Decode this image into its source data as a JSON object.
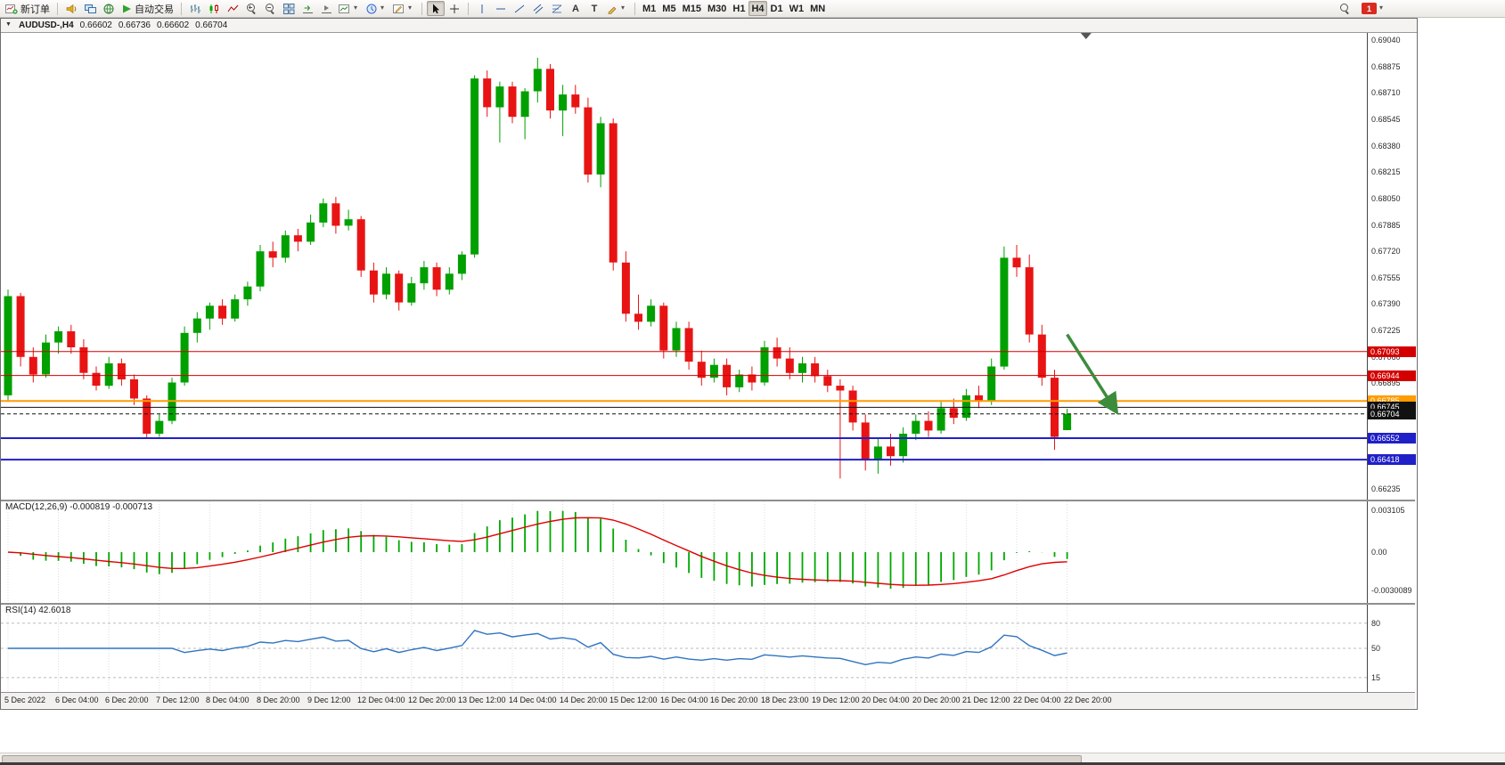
{
  "toolbar": {
    "new_order_label": "新订单",
    "auto_trading_label": "自动交易",
    "text_tool_glyph": "A",
    "label_tool_glyph": "T",
    "timeframes": [
      "M1",
      "M5",
      "M15",
      "M30",
      "H1",
      "H4",
      "D1",
      "W1",
      "MN"
    ],
    "active_timeframe": "H4",
    "notification_count": "1"
  },
  "chart": {
    "title_symbol": "AUDUSD-,H4",
    "title_open": "0.66602",
    "title_high": "0.66736",
    "title_low": "0.66602",
    "title_close": "0.66704"
  },
  "indicators": {
    "macd_label": "MACD(12,26,9) -0.000819 -0.000713",
    "macd_axis_top": "0.003105",
    "macd_axis_zero": "0.00",
    "macd_axis_bottom": "-0.0030089",
    "rsi_label": "RSI(14) 42.6018"
  },
  "chart_data": [
    {
      "type": "candlestick",
      "title": "AUDUSD-,H4",
      "timeframe": "H4",
      "bull_color": "#00a000",
      "bear_color": "#e81414",
      "y_axis": {
        "top": 0.6904,
        "step": 0.00165,
        "count": 18,
        "decimals": 5
      },
      "label_interval": 4,
      "x_labels": [
        "5 Dec 2022",
        "6 Dec 04:00",
        "6 Dec 20:00",
        "7 Dec 12:00",
        "8 Dec 04:00",
        "8 Dec 20:00",
        "9 Dec 12:00",
        "12 Dec 04:00",
        "12 Dec 20:00",
        "13 Dec 12:00",
        "14 Dec 04:00",
        "14 Dec 20:00",
        "15 Dec 12:00",
        "16 Dec 04:00",
        "16 Dec 20:00",
        "18 Dec 23:00",
        "19 Dec 12:00",
        "20 Dec 04:00",
        "20 Dec 20:00",
        "21 Dec 12:00",
        "22 Dec 04:00",
        "22 Dec 20:00"
      ],
      "levels": [
        {
          "price": 0.67093,
          "label": "0.67093",
          "color": "#d40000",
          "width": 1,
          "style": "solid"
        },
        {
          "price": 0.66944,
          "label": "0.66944",
          "color": "#d40000",
          "width": 1,
          "style": "solid"
        },
        {
          "price": 0.66785,
          "label": "0.66785",
          "color": "#ff9c00",
          "width": 2,
          "style": "solid"
        },
        {
          "price": 0.66745,
          "label": "0.66745",
          "color": "#111111",
          "width": 1,
          "style": "solid"
        },
        {
          "price": 0.66704,
          "label": "0.66704",
          "color": "#111111",
          "width": 1,
          "style": "dash",
          "role": "current-price"
        },
        {
          "price": 0.66552,
          "label": "0.66552",
          "color": "#2020c8",
          "width": 2,
          "style": "solid"
        },
        {
          "price": 0.66418,
          "label": "0.66418",
          "color": "#2020c8",
          "width": 2,
          "style": "solid"
        }
      ],
      "annotation_arrow": {
        "x1_bar": 84.0,
        "price1": 0.672,
        "x2_bar": 87.8,
        "price2": 0.6673,
        "color": "#3c8c3c"
      },
      "shift_marker_bar": 85.5,
      "ohlc": [
        [
          0.6682,
          0.6748,
          0.6678,
          0.6744
        ],
        [
          0.6744,
          0.6746,
          0.67,
          0.6706
        ],
        [
          0.6706,
          0.6712,
          0.669,
          0.6695
        ],
        [
          0.6695,
          0.672,
          0.6693,
          0.6715
        ],
        [
          0.6715,
          0.6725,
          0.6708,
          0.6722
        ],
        [
          0.6722,
          0.6726,
          0.6708,
          0.6712
        ],
        [
          0.6712,
          0.6717,
          0.6692,
          0.6696
        ],
        [
          0.6696,
          0.67,
          0.6685,
          0.6688
        ],
        [
          0.6688,
          0.6706,
          0.6686,
          0.6702
        ],
        [
          0.6702,
          0.6705,
          0.6688,
          0.6692
        ],
        [
          0.6692,
          0.6695,
          0.6676,
          0.668
        ],
        [
          0.668,
          0.6682,
          0.6655,
          0.6658
        ],
        [
          0.6658,
          0.667,
          0.6656,
          0.6666
        ],
        [
          0.6666,
          0.6693,
          0.6664,
          0.669
        ],
        [
          0.669,
          0.6725,
          0.6688,
          0.6721
        ],
        [
          0.6721,
          0.6734,
          0.6715,
          0.673
        ],
        [
          0.673,
          0.674,
          0.6723,
          0.6738
        ],
        [
          0.6738,
          0.6742,
          0.6726,
          0.673
        ],
        [
          0.673,
          0.6745,
          0.6728,
          0.6742
        ],
        [
          0.6742,
          0.6753,
          0.6738,
          0.675
        ],
        [
          0.675,
          0.6776,
          0.6747,
          0.6772
        ],
        [
          0.6772,
          0.6778,
          0.6762,
          0.6768
        ],
        [
          0.6768,
          0.6785,
          0.6765,
          0.6782
        ],
        [
          0.6782,
          0.6786,
          0.6772,
          0.6778
        ],
        [
          0.6778,
          0.6795,
          0.6776,
          0.679
        ],
        [
          0.679,
          0.6805,
          0.6787,
          0.6802
        ],
        [
          0.6802,
          0.6806,
          0.6783,
          0.6788
        ],
        [
          0.6788,
          0.6798,
          0.6785,
          0.6792
        ],
        [
          0.6792,
          0.6794,
          0.6756,
          0.676
        ],
        [
          0.676,
          0.6765,
          0.674,
          0.6745
        ],
        [
          0.6745,
          0.6762,
          0.6742,
          0.6758
        ],
        [
          0.6758,
          0.676,
          0.6735,
          0.674
        ],
        [
          0.674,
          0.6756,
          0.6738,
          0.6752
        ],
        [
          0.6752,
          0.6766,
          0.6748,
          0.6762
        ],
        [
          0.6762,
          0.6765,
          0.6744,
          0.6748
        ],
        [
          0.6748,
          0.6762,
          0.6745,
          0.6758
        ],
        [
          0.6758,
          0.6772,
          0.6754,
          0.677
        ],
        [
          0.677,
          0.6882,
          0.6768,
          0.688
        ],
        [
          0.688,
          0.6885,
          0.6856,
          0.6862
        ],
        [
          0.6862,
          0.6878,
          0.684,
          0.6875
        ],
        [
          0.6875,
          0.6878,
          0.6852,
          0.6856
        ],
        [
          0.6856,
          0.6874,
          0.6842,
          0.6872
        ],
        [
          0.6872,
          0.6893,
          0.6865,
          0.6886
        ],
        [
          0.6886,
          0.6889,
          0.6855,
          0.686
        ],
        [
          0.686,
          0.6876,
          0.6844,
          0.687
        ],
        [
          0.687,
          0.6876,
          0.6858,
          0.6862
        ],
        [
          0.6862,
          0.6868,
          0.6815,
          0.682
        ],
        [
          0.682,
          0.6856,
          0.6812,
          0.6852
        ],
        [
          0.6852,
          0.6855,
          0.676,
          0.6765
        ],
        [
          0.6765,
          0.6772,
          0.6728,
          0.6733
        ],
        [
          0.6733,
          0.6745,
          0.6723,
          0.6728
        ],
        [
          0.6728,
          0.6742,
          0.6725,
          0.6738
        ],
        [
          0.6738,
          0.674,
          0.6705,
          0.671
        ],
        [
          0.671,
          0.6728,
          0.6706,
          0.6724
        ],
        [
          0.6724,
          0.6728,
          0.6698,
          0.6703
        ],
        [
          0.6703,
          0.671,
          0.6688,
          0.6693
        ],
        [
          0.6693,
          0.6705,
          0.669,
          0.6701
        ],
        [
          0.6701,
          0.6705,
          0.6682,
          0.6687
        ],
        [
          0.6687,
          0.6698,
          0.6684,
          0.6695
        ],
        [
          0.6695,
          0.67,
          0.6685,
          0.669
        ],
        [
          0.669,
          0.6716,
          0.6688,
          0.6712
        ],
        [
          0.6712,
          0.6718,
          0.67,
          0.6705
        ],
        [
          0.6705,
          0.6712,
          0.6692,
          0.6696
        ],
        [
          0.6696,
          0.6706,
          0.669,
          0.6702
        ],
        [
          0.6702,
          0.6706,
          0.669,
          0.6694
        ],
        [
          0.6694,
          0.6698,
          0.6684,
          0.6688
        ],
        [
          0.6688,
          0.6692,
          0.663,
          0.6685
        ],
        [
          0.6685,
          0.6688,
          0.666,
          0.6665
        ],
        [
          0.6665,
          0.667,
          0.6635,
          0.6642
        ],
        [
          0.6642,
          0.6655,
          0.6633,
          0.665
        ],
        [
          0.665,
          0.6658,
          0.6638,
          0.6644
        ],
        [
          0.6644,
          0.6662,
          0.664,
          0.6658
        ],
        [
          0.6658,
          0.667,
          0.6654,
          0.6666
        ],
        [
          0.6666,
          0.6672,
          0.6656,
          0.666
        ],
        [
          0.666,
          0.6678,
          0.6658,
          0.6674
        ],
        [
          0.6674,
          0.668,
          0.6664,
          0.6668
        ],
        [
          0.6668,
          0.6686,
          0.6666,
          0.6682
        ],
        [
          0.6682,
          0.6688,
          0.6674,
          0.6678
        ],
        [
          0.6678,
          0.6705,
          0.6676,
          0.67
        ],
        [
          0.67,
          0.6775,
          0.6698,
          0.6768
        ],
        [
          0.6768,
          0.6776,
          0.6756,
          0.6762
        ],
        [
          0.6762,
          0.677,
          0.6715,
          0.672
        ],
        [
          0.672,
          0.6726,
          0.6688,
          0.6693
        ],
        [
          0.6693,
          0.6698,
          0.6648,
          0.6656
        ],
        [
          0.66602,
          0.66736,
          0.66602,
          0.66704
        ]
      ]
    },
    {
      "type": "bar",
      "name": "MACD",
      "params": {
        "fast": 12,
        "slow": 26,
        "signal": 9
      },
      "current_macd": "-0.000819",
      "current_signal": "-0.000713",
      "y_ticks": [
        "0.003105",
        "0.00",
        "-0.0030089"
      ],
      "histogram_color": "#00a800",
      "signal_color": "#e00000"
    },
    {
      "type": "line",
      "name": "RSI",
      "period": 14,
      "current": "42.6018",
      "levels": [
        80,
        50,
        15
      ],
      "range": [
        0,
        100
      ],
      "line_color": "#2f74c0"
    }
  ]
}
